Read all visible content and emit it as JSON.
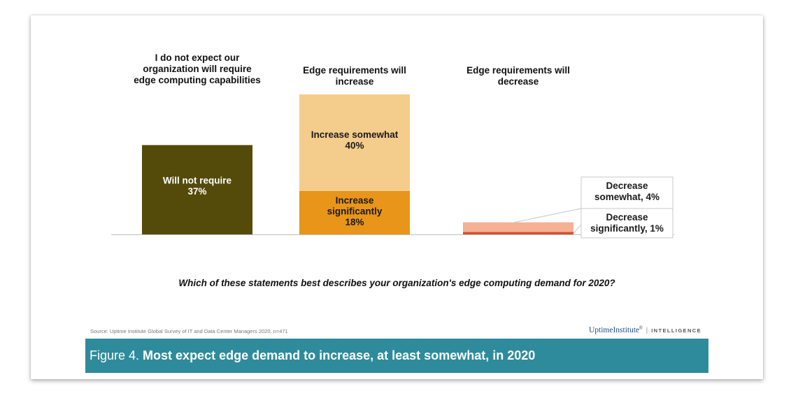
{
  "chart_data": {
    "type": "bar",
    "stacked": true,
    "unit": "%",
    "categories": [
      "I do not expect our organization will require edge computing capabilities",
      "Edge requirements will increase",
      "Edge requirements will decrease"
    ],
    "category_lines": [
      [
        "I do not expect our",
        "organization will require",
        "edge computing capabilities"
      ],
      [
        "Edge requirements will",
        "increase"
      ],
      [
        "Edge requirements will",
        "decrease"
      ]
    ],
    "stacks": [
      [
        {
          "label_lines": [
            "Will not require",
            "37%"
          ],
          "value": 37,
          "color": "#544a0a",
          "text_color": "#ffffff"
        }
      ],
      [
        {
          "label_lines": [
            "Increase",
            "significantly",
            "18%"
          ],
          "value": 18,
          "color": "#e8951a",
          "text_color": "#1a1a1a"
        },
        {
          "label_lines": [
            "Increase somewhat",
            "40%"
          ],
          "value": 40,
          "color": "#f4cc8c",
          "text_color": "#1a1a1a"
        }
      ],
      [
        {
          "label_lines": [
            "Decrease",
            "significantly, 1%"
          ],
          "value": 1,
          "color": "#d4522a",
          "text_color": "#1a1a1a",
          "callout": true
        },
        {
          "label_lines": [
            "Decrease",
            "somewhat, 4%"
          ],
          "value": 4,
          "color": "#f4b195",
          "text_color": "#1a1a1a",
          "callout": true
        }
      ]
    ],
    "xlabel": "Which of these statements best describes your organization's edge computing demand for 2020?",
    "ylim": [
      0,
      58
    ],
    "grid": false,
    "legend": "none"
  },
  "source": "Source: Uptime Institute Global Survey of IT and Data Center Managers 2020, n=471",
  "brand": {
    "name": "UptimeInstitute",
    "mark": "®",
    "tag": "INTELLIGENCE"
  },
  "caption": {
    "prefix": "Figure 4. ",
    "title": "Most expect edge demand to increase, at least somewhat, in 2020"
  },
  "colors": {
    "caption_bg": "#2e8b9c",
    "will_not_require": "#544a0a",
    "increase_significantly": "#e8951a",
    "increase_somewhat": "#f4cc8c",
    "decrease_significantly": "#d4522a",
    "decrease_somewhat": "#f4b195"
  }
}
